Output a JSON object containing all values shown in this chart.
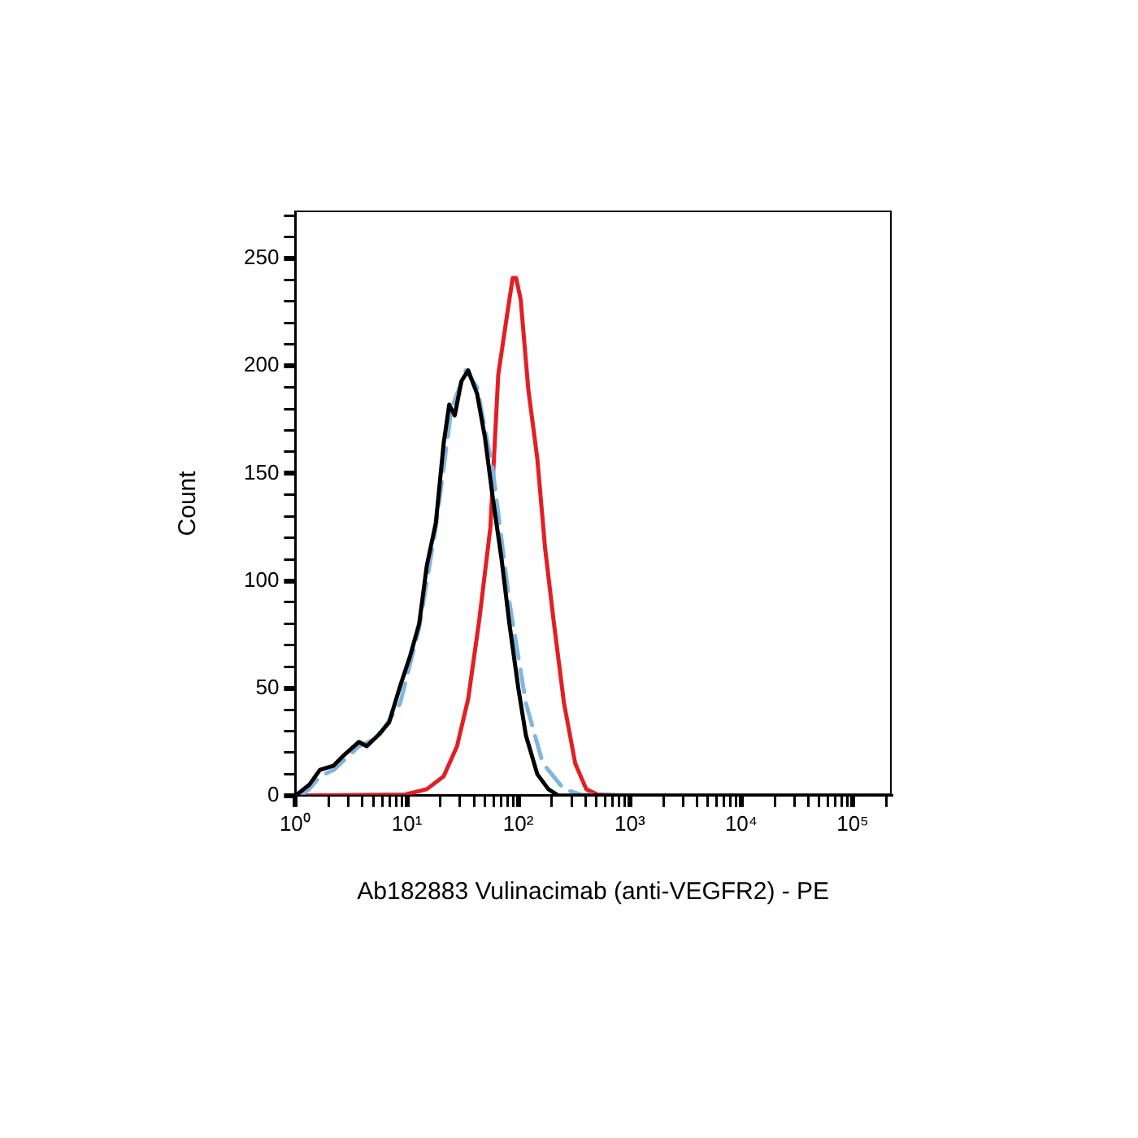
{
  "chart_data": {
    "type": "line",
    "xlabel": "Ab182883 Vulinacimab (anti-VEGFR2) - PE",
    "ylabel": "Count",
    "log": "x",
    "grid": false,
    "legend": false,
    "marker": "none",
    "xlim": [
      1,
      220000
    ],
    "xticks": [
      {
        "value": 1,
        "label": "10⁰"
      },
      {
        "value": 2,
        "label": null
      },
      {
        "value": 3,
        "label": null
      },
      {
        "value": 4,
        "label": null
      },
      {
        "value": 5,
        "label": null
      },
      {
        "value": 6,
        "label": null
      },
      {
        "value": 7,
        "label": null
      },
      {
        "value": 8,
        "label": null
      },
      {
        "value": 9,
        "label": null
      },
      {
        "value": 10,
        "label": "10¹"
      },
      {
        "value": 20,
        "label": null
      },
      {
        "value": 30,
        "label": null
      },
      {
        "value": 40,
        "label": null
      },
      {
        "value": 50,
        "label": null
      },
      {
        "value": 60,
        "label": null
      },
      {
        "value": 70,
        "label": null
      },
      {
        "value": 80,
        "label": null
      },
      {
        "value": 90,
        "label": null
      },
      {
        "value": 100,
        "label": "10²"
      },
      {
        "value": 200,
        "label": null
      },
      {
        "value": 300,
        "label": null
      },
      {
        "value": 400,
        "label": null
      },
      {
        "value": 500,
        "label": null
      },
      {
        "value": 600,
        "label": null
      },
      {
        "value": 700,
        "label": null
      },
      {
        "value": 800,
        "label": null
      },
      {
        "value": 900,
        "label": null
      },
      {
        "value": 1000,
        "label": "10³"
      },
      {
        "value": 2000,
        "label": null
      },
      {
        "value": 3000,
        "label": null
      },
      {
        "value": 4000,
        "label": null
      },
      {
        "value": 5000,
        "label": null
      },
      {
        "value": 6000,
        "label": null
      },
      {
        "value": 7000,
        "label": null
      },
      {
        "value": 8000,
        "label": null
      },
      {
        "value": 9000,
        "label": null
      },
      {
        "value": 10000,
        "label": "10⁴"
      },
      {
        "value": 20000,
        "label": null
      },
      {
        "value": 30000,
        "label": null
      },
      {
        "value": 40000,
        "label": null
      },
      {
        "value": 50000,
        "label": null
      },
      {
        "value": 60000,
        "label": null
      },
      {
        "value": 70000,
        "label": null
      },
      {
        "value": 80000,
        "label": null
      },
      {
        "value": 90000,
        "label": null
      },
      {
        "value": 100000,
        "label": "10⁵"
      },
      {
        "value": 200000,
        "label": null
      }
    ],
    "ylim": [
      0,
      272
    ],
    "yticks": [
      0,
      {
        "value": 10,
        "label": null
      },
      {
        "value": 20,
        "label": null
      },
      {
        "value": 30,
        "label": null
      },
      {
        "value": 40,
        "label": null
      },
      50,
      {
        "value": 60,
        "label": null
      },
      {
        "value": 70,
        "label": null
      },
      {
        "value": 80,
        "label": null
      },
      {
        "value": 90,
        "label": null
      },
      100,
      {
        "value": 110,
        "label": null
      },
      {
        "value": 120,
        "label": null
      },
      {
        "value": 130,
        "label": null
      },
      {
        "value": 140,
        "label": null
      },
      150,
      {
        "value": 160,
        "label": null
      },
      {
        "value": 170,
        "label": null
      },
      {
        "value": 180,
        "label": null
      },
      {
        "value": 190,
        "label": null
      },
      200,
      {
        "value": 210,
        "label": null
      },
      {
        "value": 220,
        "label": null
      },
      {
        "value": 230,
        "label": null
      },
      {
        "value": 240,
        "label": null
      },
      250,
      {
        "value": 260,
        "label": null
      },
      {
        "value": 270,
        "label": null
      }
    ],
    "series": [
      {
        "color": "#000000",
        "line_style": "solid",
        "x": [
          1.06,
          1.33,
          1.66,
          2.21,
          2.75,
          3.72,
          4.37,
          5.5,
          6.92,
          8.71,
          10.7,
          12.9,
          15.1,
          18.2,
          21.4,
          24,
          26.9,
          30.9,
          35.5,
          42.7,
          50.1,
          58.9,
          70.8,
          83.2,
          100,
          117,
          148,
          186,
          229,
          1000,
          220000
        ],
        "values": [
          1,
          5,
          12,
          14,
          19,
          25,
          23,
          28,
          34,
          51,
          65,
          80,
          107,
          127,
          164,
          182,
          177,
          193,
          198,
          187,
          167,
          139,
          110,
          80,
          50,
          28,
          10,
          3,
          0,
          0,
          0
        ]
      },
      {
        "color": "#7fb6e0",
        "line_style": "dashed",
        "x": [
          1.12,
          1.33,
          1.66,
          2.21,
          3.72,
          5.5,
          8.71,
          12.9,
          18.2,
          25.1,
          33.9,
          42.7,
          58.9,
          83.2,
          117,
          166,
          257,
          363,
          1000,
          220000
        ],
        "values": [
          0,
          3,
          9,
          12,
          23,
          27,
          43,
          78,
          125,
          180,
          198,
          190,
          152,
          90,
          43,
          15,
          3,
          0.5,
          0,
          0
        ]
      },
      {
        "color": "#e31e24",
        "line_style": "solid",
        "x": [
          1,
          9.66,
          15.1,
          21.4,
          28.2,
          35.5,
          44.7,
          56.2,
          66.1,
          79.4,
          89.1,
          95.5,
          105,
          123,
          148,
          174,
          209,
          257,
          324,
          407,
          513,
          1000,
          220000
        ],
        "values": [
          0,
          0.5,
          3,
          9,
          23,
          45,
          82,
          125,
          196,
          224,
          241,
          241,
          231,
          189,
          157,
          115,
          80,
          43,
          15,
          3,
          0.5,
          0,
          0
        ]
      }
    ]
  }
}
